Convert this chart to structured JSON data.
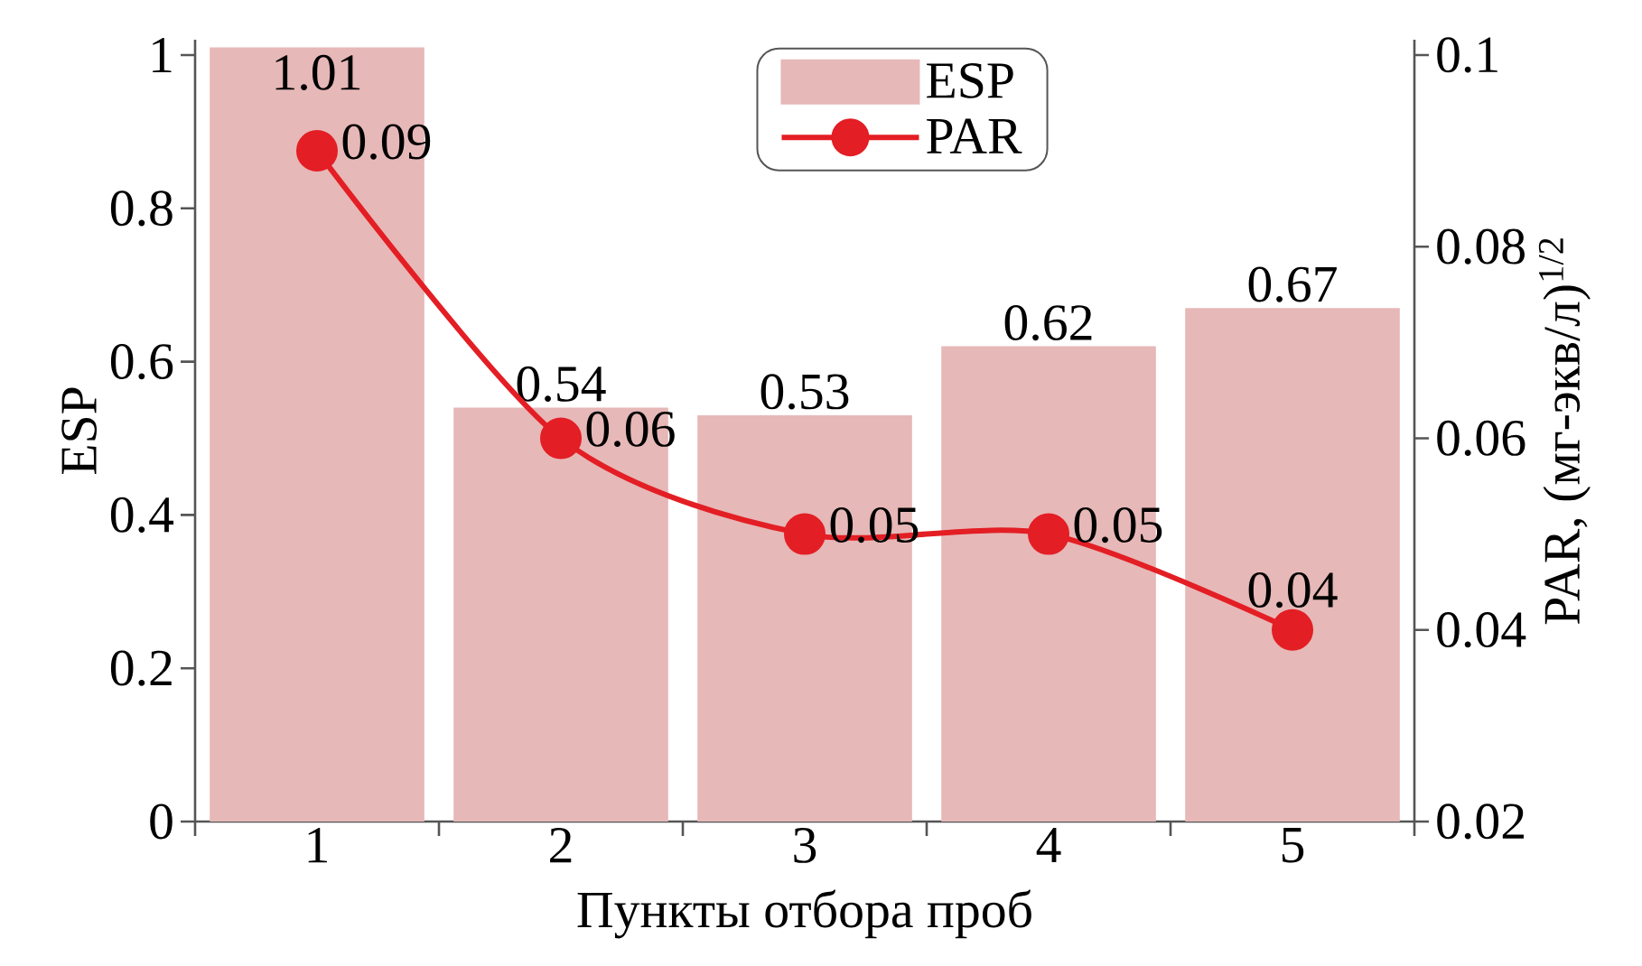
{
  "chart_data": {
    "type": "bar",
    "xlabel": "Пункты отбора проб",
    "ylabel": "ESP",
    "y2label": "PAR, (мг-экв/л)$^{1/2}$",
    "categories": [
      "1",
      "2",
      "3",
      "4",
      "5"
    ],
    "series": [
      {
        "name": "ESP",
        "type": "bar",
        "color": "#e6b8b7",
        "values": [
          1.01,
          0.54,
          0.53,
          0.62,
          0.67
        ]
      },
      {
        "name": "PAR",
        "type": "line",
        "axis": "y2",
        "color": "#e31e24",
        "values": [
          0.09,
          0.06,
          0.05,
          0.05,
          0.04
        ]
      }
    ],
    "ylim": [
      0,
      1.02
    ],
    "yticks": [
      0,
      0.2,
      0.4,
      0.6,
      0.8,
      1
    ],
    "y2lim": [
      0.02,
      0.1016
    ],
    "y2ticks": [
      0.02,
      0.04,
      0.06,
      0.08,
      0.1
    ],
    "data_labels": true,
    "legend": "top",
    "marker": "circle",
    "line_style": "solid"
  }
}
